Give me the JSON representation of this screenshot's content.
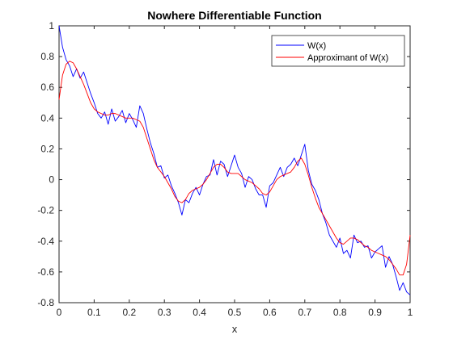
{
  "chart_data": {
    "type": "line",
    "title": "Nowhere Differentiable Function",
    "xlabel": "x",
    "ylabel": "",
    "xlim": [
      0,
      1
    ],
    "ylim": [
      -0.8,
      1
    ],
    "xticks": [
      "0",
      "0.1",
      "0.2",
      "0.3",
      "0.4",
      "0.5",
      "0.6",
      "0.7",
      "0.8",
      "0.9",
      "1"
    ],
    "yticks": [
      "-0.8",
      "-0.6",
      "-0.4",
      "-0.2",
      "0",
      "0.2",
      "0.4",
      "0.6",
      "0.8",
      "1"
    ],
    "grid": false,
    "legend_position": "top-right",
    "series": [
      {
        "name": "W(x)",
        "color": "#0000ff",
        "x": [
          0,
          0.01,
          0.02,
          0.03,
          0.04,
          0.05,
          0.06,
          0.07,
          0.08,
          0.09,
          0.1,
          0.11,
          0.12,
          0.13,
          0.14,
          0.15,
          0.16,
          0.17,
          0.18,
          0.19,
          0.2,
          0.21,
          0.22,
          0.23,
          0.24,
          0.25,
          0.26,
          0.27,
          0.28,
          0.29,
          0.3,
          0.31,
          0.32,
          0.33,
          0.34,
          0.35,
          0.36,
          0.37,
          0.38,
          0.39,
          0.4,
          0.41,
          0.42,
          0.43,
          0.44,
          0.45,
          0.46,
          0.47,
          0.48,
          0.49,
          0.5,
          0.51,
          0.52,
          0.53,
          0.54,
          0.55,
          0.56,
          0.57,
          0.58,
          0.59,
          0.6,
          0.61,
          0.62,
          0.63,
          0.64,
          0.65,
          0.66,
          0.67,
          0.68,
          0.69,
          0.7,
          0.71,
          0.72,
          0.73,
          0.74,
          0.75,
          0.76,
          0.77,
          0.78,
          0.79,
          0.8,
          0.81,
          0.82,
          0.83,
          0.84,
          0.85,
          0.86,
          0.87,
          0.88,
          0.89,
          0.9,
          0.91,
          0.92,
          0.93,
          0.94,
          0.95,
          0.96,
          0.97,
          0.98,
          0.99,
          1
        ],
        "y": [
          1.0,
          0.86,
          0.78,
          0.74,
          0.67,
          0.72,
          0.66,
          0.7,
          0.63,
          0.56,
          0.5,
          0.43,
          0.4,
          0.44,
          0.36,
          0.46,
          0.38,
          0.41,
          0.45,
          0.37,
          0.43,
          0.39,
          0.34,
          0.48,
          0.43,
          0.33,
          0.24,
          0.17,
          0.08,
          0.09,
          0.01,
          0.03,
          -0.04,
          -0.09,
          -0.15,
          -0.23,
          -0.13,
          -0.15,
          -0.09,
          -0.05,
          -0.1,
          -0.03,
          0.02,
          0.03,
          0.13,
          0.03,
          0.12,
          0.1,
          0.02,
          0.09,
          0.16,
          0.08,
          0.04,
          -0.05,
          0.02,
          0.0,
          -0.06,
          -0.1,
          -0.1,
          -0.18,
          -0.04,
          -0.02,
          0.03,
          0.08,
          0.02,
          0.08,
          0.1,
          0.14,
          0.09,
          0.16,
          0.23,
          0.06,
          -0.03,
          -0.07,
          -0.13,
          -0.22,
          -0.28,
          -0.36,
          -0.4,
          -0.44,
          -0.38,
          -0.48,
          -0.46,
          -0.51,
          -0.36,
          -0.41,
          -0.4,
          -0.44,
          -0.43,
          -0.51,
          -0.47,
          -0.45,
          -0.43,
          -0.57,
          -0.5,
          -0.55,
          -0.63,
          -0.72,
          -0.67,
          -0.73,
          -0.75
        ]
      },
      {
        "name": "Approximant of W(x)",
        "color": "#ff0000",
        "x": [
          0,
          0.01,
          0.02,
          0.03,
          0.04,
          0.05,
          0.06,
          0.07,
          0.08,
          0.09,
          0.1,
          0.11,
          0.12,
          0.13,
          0.14,
          0.15,
          0.16,
          0.17,
          0.18,
          0.19,
          0.2,
          0.21,
          0.22,
          0.23,
          0.24,
          0.25,
          0.26,
          0.27,
          0.28,
          0.29,
          0.3,
          0.31,
          0.32,
          0.33,
          0.34,
          0.35,
          0.36,
          0.37,
          0.38,
          0.39,
          0.4,
          0.41,
          0.42,
          0.43,
          0.44,
          0.45,
          0.46,
          0.47,
          0.48,
          0.49,
          0.5,
          0.51,
          0.52,
          0.53,
          0.54,
          0.55,
          0.56,
          0.57,
          0.58,
          0.59,
          0.6,
          0.61,
          0.62,
          0.63,
          0.64,
          0.65,
          0.66,
          0.67,
          0.68,
          0.69,
          0.7,
          0.71,
          0.72,
          0.73,
          0.74,
          0.75,
          0.76,
          0.77,
          0.78,
          0.79,
          0.8,
          0.81,
          0.82,
          0.83,
          0.84,
          0.85,
          0.86,
          0.87,
          0.88,
          0.89,
          0.9,
          0.91,
          0.92,
          0.93,
          0.94,
          0.95,
          0.96,
          0.97,
          0.98,
          0.99,
          1
        ],
        "y": [
          0.52,
          0.68,
          0.75,
          0.77,
          0.76,
          0.72,
          0.67,
          0.62,
          0.56,
          0.5,
          0.46,
          0.44,
          0.43,
          0.42,
          0.42,
          0.43,
          0.43,
          0.42,
          0.41,
          0.4,
          0.4,
          0.4,
          0.39,
          0.38,
          0.34,
          0.27,
          0.2,
          0.13,
          0.08,
          0.05,
          0.02,
          -0.02,
          -0.06,
          -0.11,
          -0.14,
          -0.15,
          -0.13,
          -0.09,
          -0.07,
          -0.06,
          -0.05,
          -0.03,
          0.0,
          0.04,
          0.08,
          0.1,
          0.1,
          0.08,
          0.05,
          0.04,
          0.04,
          0.04,
          0.02,
          0.0,
          -0.01,
          -0.02,
          -0.04,
          -0.06,
          -0.09,
          -0.1,
          -0.08,
          -0.04,
          0.0,
          0.02,
          0.03,
          0.04,
          0.05,
          0.08,
          0.12,
          0.14,
          0.1,
          0.03,
          -0.05,
          -0.12,
          -0.18,
          -0.22,
          -0.26,
          -0.3,
          -0.34,
          -0.38,
          -0.41,
          -0.42,
          -0.4,
          -0.38,
          -0.38,
          -0.39,
          -0.41,
          -0.43,
          -0.44,
          -0.46,
          -0.47,
          -0.48,
          -0.49,
          -0.5,
          -0.52,
          -0.55,
          -0.58,
          -0.62,
          -0.62,
          -0.55,
          -0.36
        ]
      }
    ]
  }
}
